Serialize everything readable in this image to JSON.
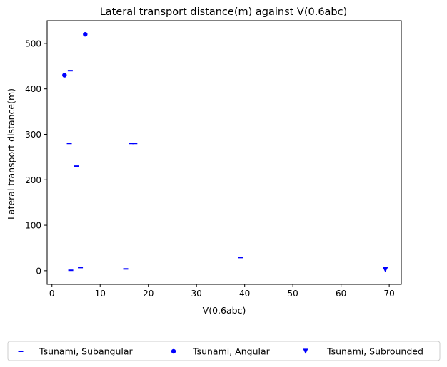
{
  "colors": {
    "marker": "#0000ff",
    "axis": "#000000",
    "background": "#ffffff"
  },
  "chart_data": {
    "type": "scatter",
    "title": "Lateral transport distance(m) against V(0.6abc)",
    "xlabel": "V(0.6abc)",
    "ylabel": "Lateral transport distance(m)",
    "xlim": [
      -1,
      72.5
    ],
    "ylim": [
      -30,
      550
    ],
    "xticks": [
      0,
      10,
      20,
      30,
      40,
      50,
      60,
      70
    ],
    "yticks": [
      0,
      100,
      200,
      300,
      400,
      500
    ],
    "grid": false,
    "legend": {
      "placement": "bottom-outside",
      "columns": 3
    },
    "series": [
      {
        "name": "Tsunami, Subangular",
        "marker": "dash",
        "color": "#0000ff",
        "points": [
          {
            "x": 3.8,
            "y": 440
          },
          {
            "x": 3.6,
            "y": 280
          },
          {
            "x": 16.5,
            "y": 280
          },
          {
            "x": 17.2,
            "y": 280
          },
          {
            "x": 5.0,
            "y": 230
          },
          {
            "x": 39.2,
            "y": 29
          },
          {
            "x": 5.9,
            "y": 7
          },
          {
            "x": 15.3,
            "y": 4
          },
          {
            "x": 3.9,
            "y": 1
          }
        ]
      },
      {
        "name": "Tsunami, Angular",
        "marker": "circle",
        "color": "#0000ff",
        "points": [
          {
            "x": 6.9,
            "y": 520
          },
          {
            "x": 2.6,
            "y": 430
          }
        ]
      },
      {
        "name": "Tsunami, Subrounded",
        "marker": "triangle-down",
        "color": "#0000ff",
        "points": [
          {
            "x": 69.2,
            "y": 2
          }
        ]
      }
    ]
  }
}
